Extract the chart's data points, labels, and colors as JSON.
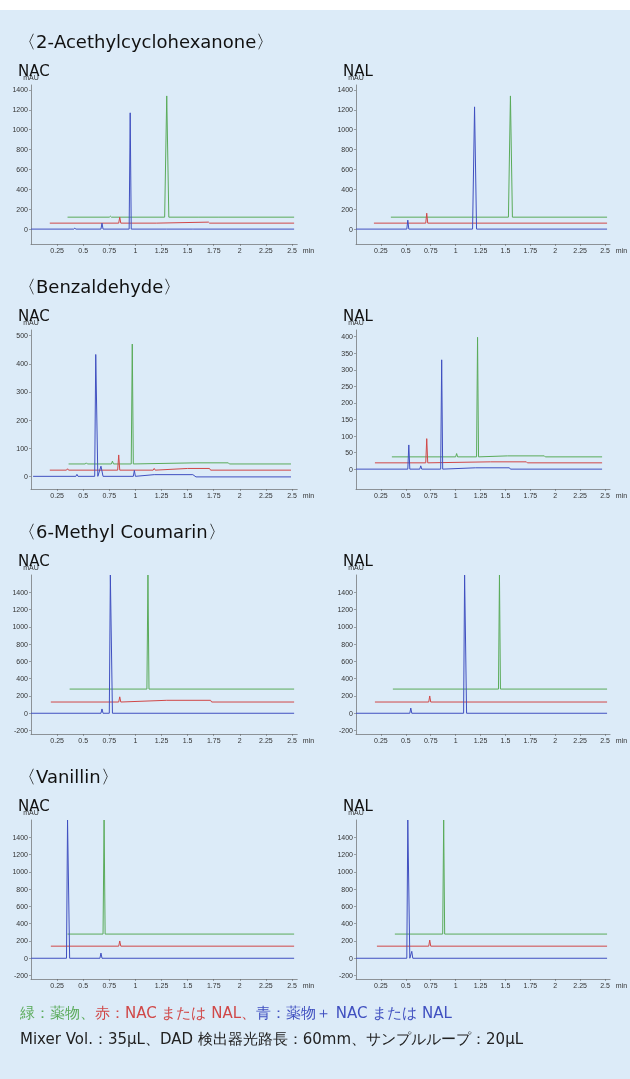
{
  "chart_data": [
    {
      "type": "line",
      "title": "〈2-Acethylcyclohexanone〉",
      "subtitle": "NAC",
      "xlabel": "min",
      "ylabel": "mAU",
      "xlim": [
        0,
        2.55
      ],
      "xticks": [
        0.25,
        0.5,
        0.75,
        1,
        1.25,
        1.5,
        1.75,
        2,
        2.25,
        2.5
      ],
      "ylim": [
        -150,
        1450
      ],
      "yticks": [
        0,
        200,
        400,
        600,
        800,
        1000,
        1200,
        1400
      ],
      "grid": false,
      "marker": "none",
      "line_style": "solid",
      "series": [
        {
          "color": "#5aab5a",
          "x": [
            0.35,
            0.75,
            0.76,
            0.77,
            1.28,
            1.3,
            1.32,
            1.6,
            1.8,
            2.52
          ],
          "values": [
            120,
            120,
            130,
            120,
            120,
            1340,
            120,
            120,
            120,
            120
          ]
        },
        {
          "color": "#d04848",
          "x": [
            0.18,
            0.84,
            0.85,
            0.86,
            1.2,
            1.7,
            1.71,
            2.52
          ],
          "values": [
            60,
            60,
            120,
            60,
            60,
            70,
            60,
            60
          ]
        },
        {
          "color": "#4050c0",
          "x": [
            0,
            0.41,
            0.42,
            0.43,
            0.67,
            0.68,
            0.69,
            0.94,
            0.95,
            0.96,
            1.3,
            1.55,
            1.56,
            2.52
          ],
          "values": [
            0,
            0,
            10,
            0,
            0,
            60,
            0,
            0,
            1170,
            0,
            0,
            0,
            0,
            0
          ]
        }
      ]
    },
    {
      "type": "line",
      "subtitle": "NAL",
      "xlabel": "min",
      "ylabel": "mAU",
      "xlim": [
        0,
        2.55
      ],
      "xticks": [
        0.25,
        0.5,
        0.75,
        1,
        1.25,
        1.5,
        1.75,
        2,
        2.25,
        2.5
      ],
      "ylim": [
        -150,
        1450
      ],
      "yticks": [
        0,
        200,
        400,
        600,
        800,
        1000,
        1200,
        1400
      ],
      "grid": false,
      "marker": "none",
      "line_style": "solid",
      "series": [
        {
          "color": "#5aab5a",
          "x": [
            0.35,
            1.53,
            1.55,
            1.57,
            2.52
          ],
          "values": [
            120,
            120,
            1340,
            120,
            120
          ]
        },
        {
          "color": "#d04848",
          "x": [
            0.18,
            0.7,
            0.71,
            0.72,
            2.52
          ],
          "values": [
            60,
            60,
            160,
            60,
            60
          ]
        },
        {
          "color": "#4050c0",
          "x": [
            0,
            0.51,
            0.52,
            0.53,
            1.17,
            1.19,
            1.21,
            2.52
          ],
          "values": [
            0,
            0,
            90,
            0,
            0,
            1230,
            0,
            0
          ]
        }
      ]
    },
    {
      "type": "line",
      "title": "〈Benzaldehyde〉",
      "subtitle": "NAC",
      "xlabel": "min",
      "ylabel": "mAU",
      "xlim": [
        0,
        2.55
      ],
      "xticks": [
        0.25,
        0.5,
        0.75,
        1,
        1.25,
        1.5,
        1.75,
        2,
        2.25,
        2.5
      ],
      "ylim": [
        -45,
        520
      ],
      "yticks": [
        0,
        100,
        200,
        300,
        400,
        500
      ],
      "grid": false,
      "marker": "none",
      "line_style": "solid",
      "series": [
        {
          "color": "#5aab5a",
          "x": [
            0.36,
            0.52,
            0.53,
            0.54,
            0.77,
            0.78,
            0.79,
            0.96,
            0.97,
            0.98,
            1.58,
            1.89,
            1.9,
            2.49
          ],
          "values": [
            44,
            44,
            48,
            44,
            44,
            54,
            44,
            44,
            470,
            44,
            48,
            48,
            44,
            44
          ]
        },
        {
          "color": "#d04848",
          "x": [
            0.18,
            0.34,
            0.35,
            0.36,
            0.83,
            0.84,
            0.85,
            1.17,
            1.18,
            1.19,
            1.5,
            1.71,
            1.72,
            2.49
          ],
          "values": [
            22,
            22,
            27,
            22,
            22,
            76,
            22,
            22,
            28,
            22,
            28,
            28,
            22,
            22
          ]
        },
        {
          "color": "#4050c0",
          "x": [
            0.02,
            0.43,
            0.44,
            0.45,
            0.61,
            0.62,
            0.64,
            0.67,
            0.69,
            0.98,
            0.99,
            1.0,
            1.18,
            1.55,
            1.58,
            2.49
          ],
          "values": [
            0,
            0,
            7,
            0,
            0,
            433,
            0,
            36,
            0,
            0,
            21,
            0,
            6,
            6,
            -2,
            -2
          ]
        }
      ]
    },
    {
      "type": "line",
      "subtitle": "NAL",
      "xlabel": "min",
      "ylabel": "mAU",
      "xlim": [
        0,
        2.55
      ],
      "xticks": [
        0.25,
        0.5,
        0.75,
        1,
        1.25,
        1.5,
        1.75,
        2,
        2.25,
        2.5
      ],
      "ylim": [
        -60,
        420
      ],
      "yticks": [
        0,
        50,
        100,
        150,
        200,
        250,
        300,
        350,
        400
      ],
      "grid": false,
      "marker": "none",
      "line_style": "solid",
      "series": [
        {
          "color": "#5aab5a",
          "x": [
            0.36,
            1.0,
            1.01,
            1.02,
            1.21,
            1.22,
            1.23,
            1.52,
            1.89,
            1.9,
            2.47
          ],
          "values": [
            37,
            37,
            47,
            37,
            37,
            398,
            37,
            40,
            40,
            37,
            37
          ]
        },
        {
          "color": "#d04848",
          "x": [
            0.19,
            0.7,
            0.71,
            0.72,
            1.35,
            1.71,
            1.72,
            2.47
          ],
          "values": [
            19,
            19,
            92,
            19,
            22,
            22,
            19,
            19
          ]
        },
        {
          "color": "#4050c0",
          "x": [
            0,
            0.52,
            0.53,
            0.54,
            0.64,
            0.65,
            0.66,
            0.85,
            0.86,
            0.87,
            1.2,
            1.54,
            1.55,
            2.47
          ],
          "values": [
            0,
            0,
            73,
            0,
            0,
            10,
            0,
            0,
            330,
            0,
            4,
            4,
            0,
            0
          ]
        }
      ]
    },
    {
      "type": "line",
      "title": "〈6-Methyl Coumarin〉",
      "subtitle": "NAC",
      "xlabel": "min",
      "ylabel": "mAU",
      "xlim": [
        0,
        2.55
      ],
      "xticks": [
        0.25,
        0.5,
        0.75,
        1,
        1.25,
        1.5,
        1.75,
        2,
        2.25,
        2.5
      ],
      "ylim": [
        -240,
        1600
      ],
      "yticks": [
        -200,
        0,
        200,
        400,
        600,
        800,
        1000,
        1200,
        1400
      ],
      "grid": false,
      "marker": "none",
      "line_style": "solid",
      "series": [
        {
          "color": "#5aab5a",
          "x": [
            0.37,
            1.11,
            1.12,
            1.13,
            2.52
          ],
          "values": [
            280,
            280,
            1600,
            280,
            280
          ]
        },
        {
          "color": "#d04848",
          "x": [
            0.19,
            0.84,
            0.85,
            0.86,
            1.3,
            1.72,
            1.73,
            2.52
          ],
          "values": [
            130,
            130,
            190,
            130,
            150,
            150,
            130,
            130
          ]
        },
        {
          "color": "#4050c0",
          "x": [
            0,
            0.67,
            0.68,
            0.69,
            0.75,
            0.76,
            0.78,
            2.52
          ],
          "values": [
            0,
            0,
            50,
            0,
            0,
            1600,
            0,
            0
          ]
        }
      ]
    },
    {
      "type": "line",
      "subtitle": "NAL",
      "xlabel": "min",
      "ylabel": "mAU",
      "xlim": [
        0,
        2.55
      ],
      "xticks": [
        0.25,
        0.5,
        0.75,
        1,
        1.25,
        1.5,
        1.75,
        2,
        2.25,
        2.5
      ],
      "ylim": [
        -240,
        1600
      ],
      "yticks": [
        -200,
        0,
        200,
        400,
        600,
        800,
        1000,
        1200,
        1400
      ],
      "grid": false,
      "marker": "none",
      "line_style": "solid",
      "series": [
        {
          "color": "#5aab5a",
          "x": [
            0.37,
            1.43,
            1.44,
            1.45,
            2.52
          ],
          "values": [
            280,
            280,
            1600,
            280,
            280
          ]
        },
        {
          "color": "#d04848",
          "x": [
            0.19,
            0.73,
            0.74,
            0.75,
            2.52
          ],
          "values": [
            130,
            130,
            200,
            130,
            130
          ]
        },
        {
          "color": "#4050c0",
          "x": [
            0,
            0.54,
            0.55,
            0.56,
            1.08,
            1.09,
            1.11,
            2.52
          ],
          "values": [
            0,
            0,
            60,
            0,
            0,
            1600,
            0,
            0
          ]
        }
      ]
    },
    {
      "type": "line",
      "title": "〈Vanillin〉",
      "subtitle": "NAC",
      "xlabel": "min",
      "ylabel": "mAU",
      "xlim": [
        0,
        2.55
      ],
      "xticks": [
        0.25,
        0.5,
        0.75,
        1,
        1.25,
        1.5,
        1.75,
        2,
        2.25,
        2.5
      ],
      "ylim": [
        -240,
        1600
      ],
      "yticks": [
        -200,
        0,
        200,
        400,
        600,
        800,
        1000,
        1200,
        1400
      ],
      "grid": false,
      "marker": "none",
      "line_style": "solid",
      "series": [
        {
          "color": "#5aab5a",
          "x": [
            0.35,
            0.69,
            0.7,
            0.71,
            2.52
          ],
          "values": [
            280,
            280,
            1600,
            280,
            280
          ]
        },
        {
          "color": "#d04848",
          "x": [
            0.19,
            0.84,
            0.85,
            0.86,
            2.52
          ],
          "values": [
            140,
            140,
            200,
            140,
            140
          ]
        },
        {
          "color": "#4050c0",
          "x": [
            0,
            0.34,
            0.35,
            0.37,
            0.66,
            0.67,
            0.68,
            2.52
          ],
          "values": [
            0,
            0,
            1600,
            0,
            0,
            60,
            0,
            0
          ]
        }
      ]
    },
    {
      "type": "line",
      "subtitle": "NAL",
      "xlabel": "min",
      "ylabel": "mAU",
      "xlim": [
        0,
        2.55
      ],
      "xticks": [
        0.25,
        0.5,
        0.75,
        1,
        1.25,
        1.5,
        1.75,
        2,
        2.25,
        2.5
      ],
      "ylim": [
        -240,
        1600
      ],
      "yticks": [
        -200,
        0,
        200,
        400,
        600,
        800,
        1000,
        1200,
        1400
      ],
      "grid": false,
      "marker": "none",
      "line_style": "solid",
      "annotations": [
        "緑：薬物、",
        "赤：NAC または NAL、",
        "青：薬物＋ NAC または NAL",
        "Mixer Vol.：35μL、DAD 検出器光路長：60mm、サンプルループ：20μL"
      ],
      "series": [
        {
          "color": "#5aab5a",
          "x": [
            0.39,
            0.87,
            0.88,
            0.89,
            2.52
          ],
          "values": [
            280,
            280,
            1600,
            280,
            280
          ]
        },
        {
          "color": "#d04848",
          "x": [
            0.21,
            0.73,
            0.74,
            0.75,
            2.52
          ],
          "values": [
            140,
            140,
            210,
            140,
            140
          ]
        },
        {
          "color": "#4050c0",
          "x": [
            0,
            0.51,
            0.52,
            0.54,
            0.56,
            0.57,
            2.52
          ],
          "values": [
            0,
            0,
            1600,
            0,
            80,
            0,
            0
          ]
        }
      ]
    }
  ]
}
